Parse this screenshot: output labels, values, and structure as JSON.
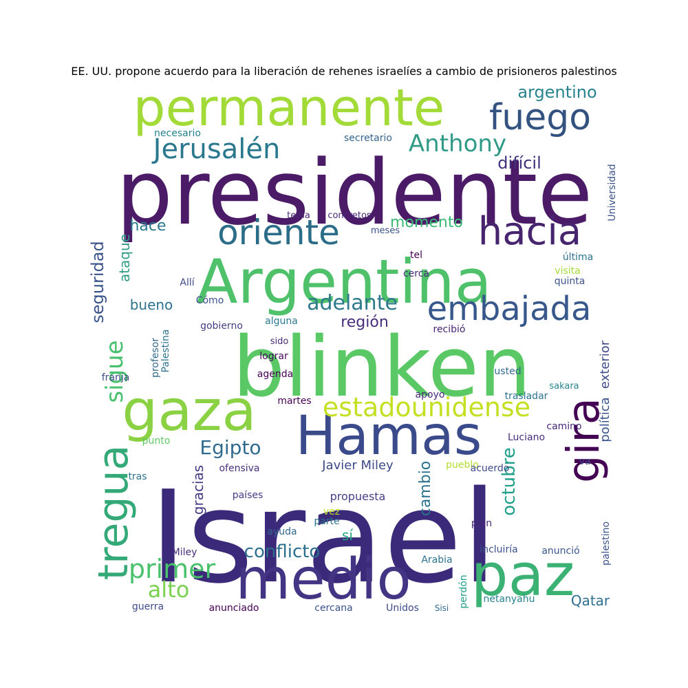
{
  "title": "EE. UU. propone acuerdo para la liberación de rehenes israelíes a cambio de prisioneros palestinos",
  "palette": [
    "#440154",
    "#482878",
    "#3e4989",
    "#31688e",
    "#26828e",
    "#1f9e89",
    "#35b779",
    "#6ece58",
    "#b5de2b",
    "#fde725"
  ],
  "words": [
    {
      "text": "Israel",
      "color": "#3b2a7a"
    },
    {
      "text": "presidente",
      "color": "#4b1b67"
    },
    {
      "text": "blinken",
      "color": "#5ac864"
    },
    {
      "text": "Argentina",
      "color": "#4ec16a"
    },
    {
      "text": "Hamas",
      "color": "#3a4a8a"
    },
    {
      "text": "gaza",
      "color": "#8ad143"
    },
    {
      "text": "permanente",
      "color": "#a2da37"
    },
    {
      "text": "medio",
      "color": "#433583"
    },
    {
      "text": "paz",
      "color": "#3bb274"
    },
    {
      "text": "fuego",
      "color": "#33527f"
    },
    {
      "text": "hacia",
      "color": "#46256e"
    },
    {
      "text": "oriente",
      "color": "#2b6d88"
    },
    {
      "text": "Jerusalén",
      "color": "#2a788e"
    },
    {
      "text": "gira",
      "color": "#440154"
    },
    {
      "text": "tregua",
      "color": "#34a978"
    },
    {
      "text": "embajada",
      "color": "#38588c"
    },
    {
      "text": "estadounidense",
      "color": "#c5df22"
    },
    {
      "text": "Anthony",
      "color": "#2f9a86"
    },
    {
      "text": "argentino",
      "color": "#27848e"
    },
    {
      "text": "adelante",
      "color": "#2d7a8c"
    },
    {
      "text": "primer",
      "color": "#4ac16d"
    },
    {
      "text": "alto",
      "color": "#7ad151"
    },
    {
      "text": "conflicto",
      "color": "#2b6f8e"
    },
    {
      "text": "octubre",
      "color": "#1f9e89"
    },
    {
      "text": "Egipto",
      "color": "#306a8e"
    },
    {
      "text": "sigue",
      "color": "#48c06e"
    },
    {
      "text": "seguridad",
      "color": "#3a538b"
    },
    {
      "text": "difícil",
      "color": "#3f317c"
    },
    {
      "text": "hace",
      "color": "#2a788e"
    },
    {
      "text": "región",
      "color": "#472d7b"
    },
    {
      "text": "momento",
      "color": "#3aba76"
    },
    {
      "text": "bueno",
      "color": "#2c718e"
    },
    {
      "text": "ataque",
      "color": "#2f9b86"
    },
    {
      "text": "gracias",
      "color": "#423a83"
    },
    {
      "text": "cambio",
      "color": "#2b728e"
    },
    {
      "text": "Qatar",
      "color": "#2e6e8e"
    },
    {
      "text": "sí",
      "color": "#26a784"
    },
    {
      "text": "Javier Miley",
      "color": "#3e4a89"
    },
    {
      "text": "propuesta",
      "color": "#433f85"
    },
    {
      "text": "secretario",
      "color": "#33638d"
    },
    {
      "text": "necesario",
      "color": "#26818e"
    },
    {
      "text": "Universidad",
      "color": "#3a528b"
    },
    {
      "text": "política",
      "color": "#39558c"
    },
    {
      "text": "exterior",
      "color": "#3e4a89"
    },
    {
      "text": "palestino",
      "color": "#3b518b"
    },
    {
      "text": "apoyo",
      "color": "#472878"
    },
    {
      "text": "trasladar",
      "color": "#2c728e"
    },
    {
      "text": "Luciano",
      "color": "#472d7b"
    },
    {
      "text": "pueblo",
      "color": "#b2dd2d"
    },
    {
      "text": "acuerdo",
      "color": "#3e4c8a"
    },
    {
      "text": "ofensiva",
      "color": "#46307e"
    },
    {
      "text": "Arabia",
      "color": "#2c728e"
    },
    {
      "text": "Unidos",
      "color": "#3e4a89"
    },
    {
      "text": "anunciado",
      "color": "#440154"
    },
    {
      "text": "cercana",
      "color": "#3b528b"
    },
    {
      "text": "perdón",
      "color": "#1f9e89"
    },
    {
      "text": "netanyahu",
      "color": "#26828e"
    },
    {
      "text": "guerra",
      "color": "#3e4a89"
    },
    {
      "text": "anunció",
      "color": "#39568c"
    },
    {
      "text": "incluiría",
      "color": "#3b528b"
    },
    {
      "text": "plan",
      "color": "#482475"
    },
    {
      "text": "agenda",
      "color": "#440154"
    },
    {
      "text": "lograr",
      "color": "#46085c"
    },
    {
      "text": "gobierno",
      "color": "#433e85"
    },
    {
      "text": "Palestina",
      "color": "#2c728e"
    },
    {
      "text": "profesor",
      "color": "#31688e"
    },
    {
      "text": "franja",
      "color": "#3e4a89"
    },
    {
      "text": "cerca",
      "color": "#482878"
    },
    {
      "text": "visita",
      "color": "#a5db36"
    },
    {
      "text": "quinta",
      "color": "#3b528b"
    },
    {
      "text": "última",
      "color": "#2c728e"
    },
    {
      "text": "Allí",
      "color": "#3e4a89"
    },
    {
      "text": "Cómo",
      "color": "#3b528b"
    },
    {
      "text": "tras",
      "color": "#2c728e"
    },
    {
      "text": "países",
      "color": "#443983"
    },
    {
      "text": "Miley",
      "color": "#472d7b"
    },
    {
      "text": "parte",
      "color": "#2c728e"
    },
    {
      "text": "vez",
      "color": "#bddf26"
    },
    {
      "text": "ayuda",
      "color": "#31688e"
    },
    {
      "text": "Sisi",
      "color": "#31688e"
    },
    {
      "text": "camino",
      "color": "#482878"
    },
    {
      "text": "va",
      "color": "#3e4a89"
    },
    {
      "text": "martes",
      "color": "#440154"
    },
    {
      "text": "punto",
      "color": "#5ec962"
    },
    {
      "text": "tema",
      "color": "#482878"
    },
    {
      "text": "concretos",
      "color": "#482878"
    },
    {
      "text": "meses",
      "color": "#3b528b"
    },
    {
      "text": "sakara",
      "color": "#26828e"
    },
    {
      "text": "usted",
      "color": "#31688e"
    },
    {
      "text": "recibió",
      "color": "#482475"
    },
    {
      "text": "alguna",
      "color": "#2a788e"
    },
    {
      "text": "sido",
      "color": "#482878"
    },
    {
      "text": "tel",
      "color": "#440154"
    }
  ]
}
